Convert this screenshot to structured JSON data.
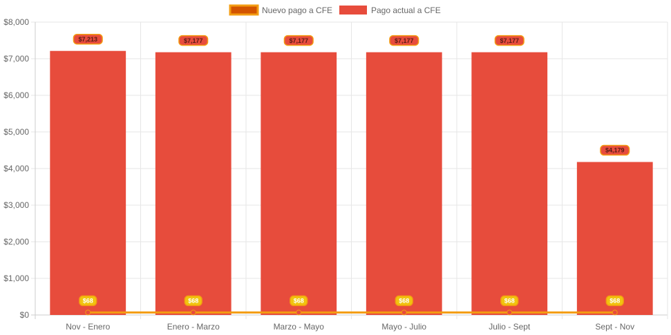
{
  "chart_data": {
    "type": "bar",
    "categories": [
      "Nov - Enero",
      "Enero - Marzo",
      "Marzo - Mayo",
      "Mayo - Julio",
      "Julio - Sept",
      "Sept - Nov"
    ],
    "series": [
      {
        "name": "Pago actual a CFE",
        "kind": "bar",
        "color": "#e74c3c",
        "values": [
          7213,
          7177,
          7177,
          7177,
          7177,
          4179
        ],
        "labels": [
          "$7,213",
          "$7,177",
          "$7,177",
          "$7,177",
          "$7,177",
          "$4,179"
        ]
      },
      {
        "name": "Nuevo pago a CFE",
        "kind": "line",
        "color": "#f39c12",
        "point_color": "#e74c3c",
        "values": [
          68,
          68,
          68,
          68,
          68,
          68
        ],
        "labels": [
          "$68",
          "$68",
          "$68",
          "$68",
          "$68",
          "$68"
        ]
      }
    ],
    "ylim": [
      0,
      8000
    ],
    "y_ticks": [
      "$0",
      "$1,000",
      "$2,000",
      "$3,000",
      "$4,000",
      "$5,000",
      "$6,000",
      "$7,000",
      "$8,000"
    ],
    "title": "",
    "xlabel": "",
    "ylabel": "",
    "grid": true,
    "legend_position": "top"
  },
  "legend": {
    "items": [
      {
        "label": "Nuevo pago a CFE",
        "fill": "#d35400",
        "stroke": "#f39c12"
      },
      {
        "label": "Pago actual a CFE",
        "fill": "#e74c3c",
        "stroke": "#e74c3c"
      }
    ]
  }
}
